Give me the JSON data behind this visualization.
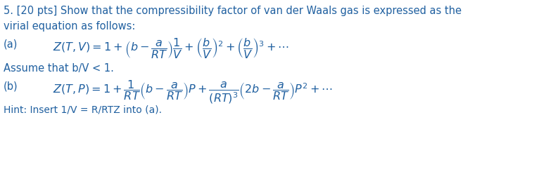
{
  "background_color": "#ffffff",
  "text_color": "#2060a0",
  "line1": "5. [20 pts] Show that the compressibility factor of van der Waals gas is expressed as the",
  "line2": "virial equation as follows:",
  "label_a": "(a)",
  "eq_a": "$Z(T,V) = 1 + \\left(b - \\dfrac{a}{RT}\\right)\\dfrac{1}{V} + \\left(\\dfrac{b}{V}\\right)^{2} + \\left(\\dfrac{b}{V}\\right)^{3} + \\cdots$",
  "line_assume": "Assume that b/V < 1.",
  "label_b": "(b)",
  "eq_b": "$Z(T,P) = 1 + \\dfrac{1}{RT}\\left(b - \\dfrac{a}{RT}\\right)P + \\dfrac{a}{(RT)^{3}}\\left(2b - \\dfrac{a}{RT}\\right)P^{2} + \\cdots$",
  "hint": "Hint: Insert 1/V = R/RTZ into (a).",
  "fontsize_text": 10.5,
  "fontsize_eq": 11.5,
  "fontsize_hint": 10.0,
  "fig_width": 7.93,
  "fig_height": 2.48,
  "dpi": 100
}
